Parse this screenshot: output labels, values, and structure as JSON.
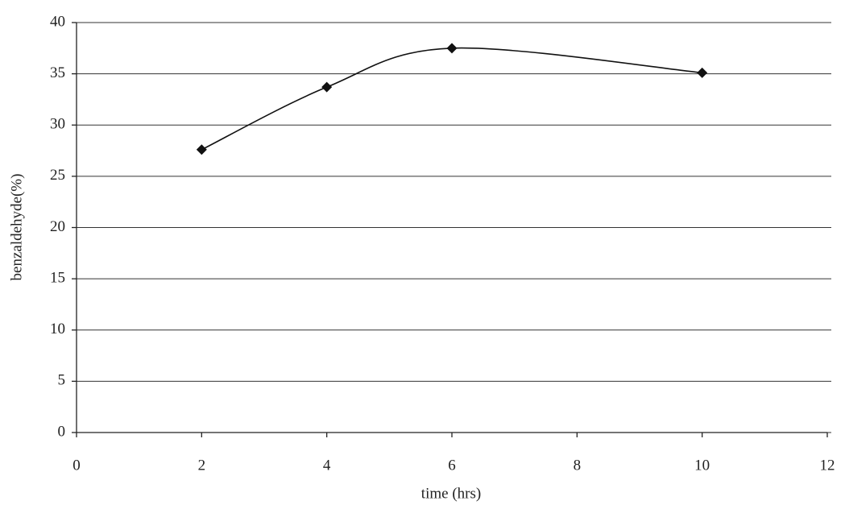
{
  "chart_data": {
    "type": "line",
    "x_label": "time (hrs)",
    "y_label": "benzaldehyde(%)",
    "x": [
      2,
      4,
      6,
      10
    ],
    "series": [
      {
        "color": "#111111",
        "values": [
          27.6,
          33.7,
          37.5,
          35.1
        ]
      }
    ],
    "xlim": [
      0,
      12
    ],
    "xticks": [
      0,
      2,
      4,
      6,
      8,
      10,
      12
    ],
    "ylim": [
      0,
      40
    ],
    "yticks": [
      0,
      5,
      10,
      15,
      20,
      25,
      30,
      35,
      40
    ],
    "grid": true,
    "smooth": true,
    "marker": "diamond"
  }
}
